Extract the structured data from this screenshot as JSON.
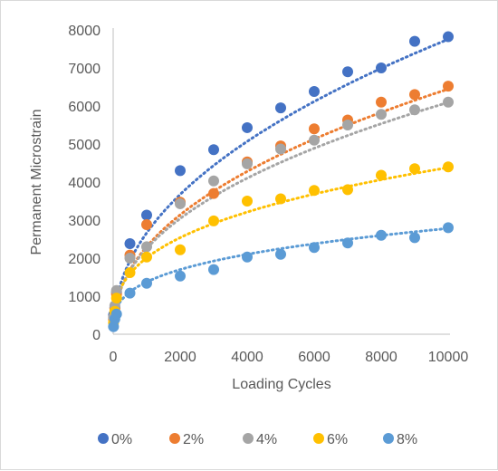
{
  "chart_data": {
    "type": "scatter",
    "title": "",
    "xlabel": "Loading Cycles",
    "ylabel": "Permanent Microstrain",
    "xlim": [
      0,
      10000
    ],
    "ylim": [
      0,
      8000
    ],
    "xticks": [
      0,
      2000,
      4000,
      6000,
      8000,
      10000
    ],
    "yticks": [
      0,
      1000,
      2000,
      3000,
      4000,
      5000,
      6000,
      7000,
      8000
    ],
    "x_tick_labels": [
      "0",
      "2000",
      "4000",
      "6000",
      "8000",
      "10000"
    ],
    "y_tick_labels": [
      "0",
      "1000",
      "2000",
      "3000",
      "4000",
      "5000",
      "6000",
      "7000",
      "8000"
    ],
    "grid": false,
    "legend_position": "bottom",
    "trendline": "dotted power fit",
    "series": [
      {
        "name": "0%",
        "color": "#4472C4",
        "points": [
          [
            10,
            500
          ],
          [
            50,
            700
          ],
          [
            100,
            1100
          ],
          [
            500,
            2380
          ],
          [
            1000,
            3130
          ],
          [
            2000,
            4300
          ],
          [
            3000,
            4850
          ],
          [
            4000,
            5430
          ],
          [
            5000,
            5950
          ],
          [
            6000,
            6380
          ],
          [
            7000,
            6900
          ],
          [
            8000,
            7000
          ],
          [
            9000,
            7700
          ],
          [
            10000,
            7820
          ]
        ],
        "trend": {
          "a": 108,
          "b": 0.464
        }
      },
      {
        "name": "2%",
        "color": "#ED7D31",
        "points": [
          [
            10,
            400
          ],
          [
            50,
            680
          ],
          [
            100,
            1050
          ],
          [
            500,
            2080
          ],
          [
            1000,
            2880
          ],
          [
            2000,
            3470
          ],
          [
            3000,
            3700
          ],
          [
            4000,
            4530
          ],
          [
            5000,
            4950
          ],
          [
            6000,
            5400
          ],
          [
            7000,
            5630
          ],
          [
            8000,
            6100
          ],
          [
            9000,
            6300
          ],
          [
            10000,
            6520
          ]
        ],
        "trend": {
          "a": 105,
          "b": 0.447
        }
      },
      {
        "name": "4%",
        "color": "#A5A5A5",
        "points": [
          [
            10,
            450
          ],
          [
            50,
            750
          ],
          [
            100,
            1150
          ],
          [
            500,
            2000
          ],
          [
            1000,
            2300
          ],
          [
            2000,
            3430
          ],
          [
            3000,
            4030
          ],
          [
            4000,
            4480
          ],
          [
            5000,
            4870
          ],
          [
            6000,
            5100
          ],
          [
            7000,
            5500
          ],
          [
            8000,
            5780
          ],
          [
            9000,
            5900
          ],
          [
            10000,
            6100
          ]
        ],
        "trend": {
          "a": 114,
          "b": 0.432
        }
      },
      {
        "name": "6%",
        "color": "#FFC000",
        "points": [
          [
            10,
            300
          ],
          [
            50,
            600
          ],
          [
            100,
            950
          ],
          [
            500,
            1620
          ],
          [
            1000,
            2030
          ],
          [
            2000,
            2220
          ],
          [
            3000,
            2980
          ],
          [
            4000,
            3500
          ],
          [
            5000,
            3560
          ],
          [
            6000,
            3780
          ],
          [
            7000,
            3800
          ],
          [
            8000,
            4180
          ],
          [
            9000,
            4350
          ],
          [
            10000,
            4400
          ]
        ],
        "trend": {
          "a": 193,
          "b": 0.339
        }
      },
      {
        "name": "8%",
        "color": "#5B9BD5",
        "points": [
          [
            10,
            200
          ],
          [
            50,
            400
          ],
          [
            100,
            530
          ],
          [
            500,
            1080
          ],
          [
            1000,
            1340
          ],
          [
            2000,
            1530
          ],
          [
            3000,
            1700
          ],
          [
            4000,
            2030
          ],
          [
            5000,
            2100
          ],
          [
            6000,
            2280
          ],
          [
            7000,
            2400
          ],
          [
            8000,
            2600
          ],
          [
            9000,
            2540
          ],
          [
            10000,
            2800
          ]
        ],
        "trend": {
          "a": 166,
          "b": 0.306
        }
      }
    ]
  }
}
